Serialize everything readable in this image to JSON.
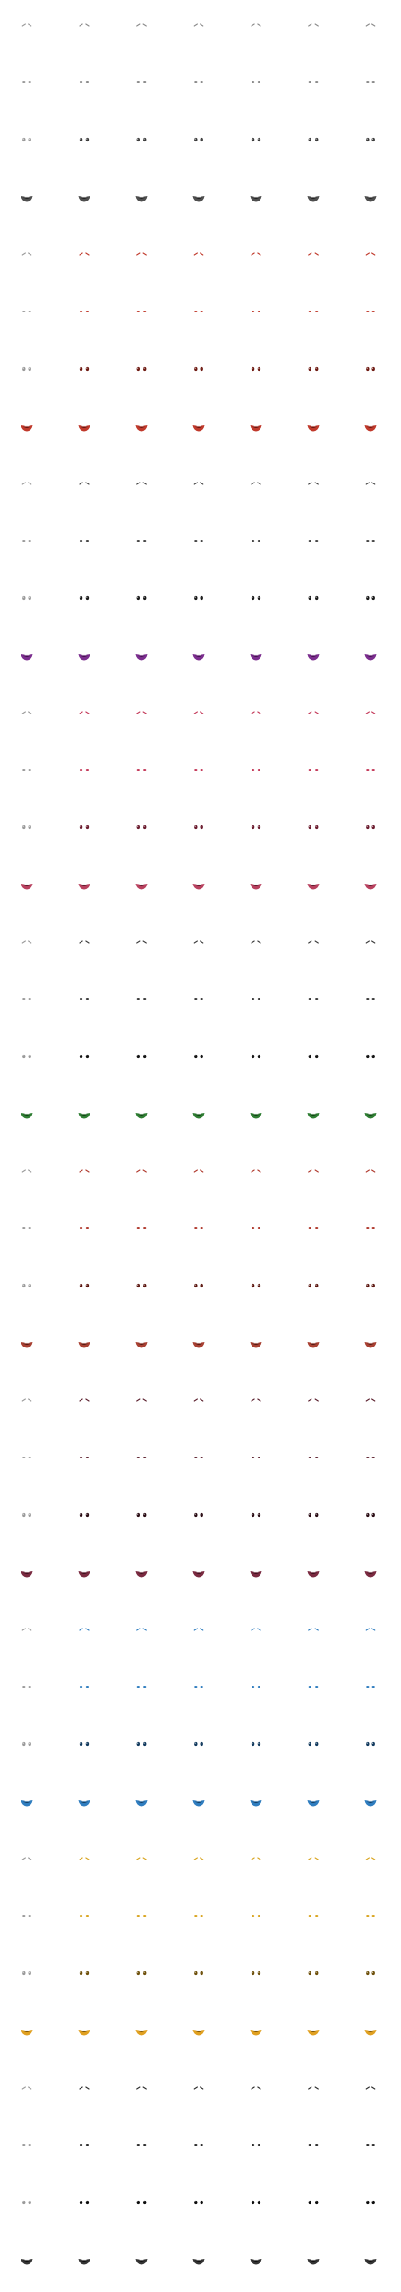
{
  "sprite_sheet": {
    "columns": 7,
    "frame_variants": [
      "eyes-closed",
      "eyes-half-open",
      "eyes-open",
      "mouth-open"
    ],
    "palettes": [
      {
        "name": "grey",
        "eye": "#8a8a8a",
        "eye_dark": "#3c3c3c",
        "mouth": "#4e4e4e",
        "mouth_dark": "#1f1f1f"
      },
      {
        "name": "red",
        "eye": "#c0392b",
        "eye_dark": "#6e1a12",
        "mouth": "#c0392b",
        "mouth_dark": "#5e1410"
      },
      {
        "name": "charcoal",
        "eye": "#444444",
        "eye_dark": "#1a1a1a",
        "mouth": "#7b2d8e",
        "mouth_dark": "#3d1147"
      },
      {
        "name": "pink",
        "eye": "#c43a5a",
        "eye_dark": "#6b1c2f",
        "mouth": "#b8405e",
        "mouth_dark": "#5a1a2a"
      },
      {
        "name": "dark-green",
        "eye": "#3a3a3a",
        "eye_dark": "#141414",
        "mouth": "#2e7d32",
        "mouth_dark": "#0f3d12"
      },
      {
        "name": "crimson",
        "eye": "#b03a2e",
        "eye_dark": "#5c1710",
        "mouth": "#a84032",
        "mouth_dark": "#4e1610"
      },
      {
        "name": "maroon",
        "eye": "#5a1e2c",
        "eye_dark": "#2a0c14",
        "mouth": "#7a2a40",
        "mouth_dark": "#3a0f1c"
      },
      {
        "name": "blue",
        "eye": "#2f7dbf",
        "eye_dark": "#123a5e",
        "mouth": "#2f7dbf",
        "mouth_dark": "#123a5e"
      },
      {
        "name": "gold",
        "eye": "#d9a520",
        "eye_dark": "#6e500a",
        "mouth": "#e0a020",
        "mouth_dark": "#7a5208"
      },
      {
        "name": "black",
        "eye": "#2a2a2a",
        "eye_dark": "#0c0c0c",
        "mouth": "#333333",
        "mouth_dark": "#0c0c0c"
      }
    ]
  }
}
